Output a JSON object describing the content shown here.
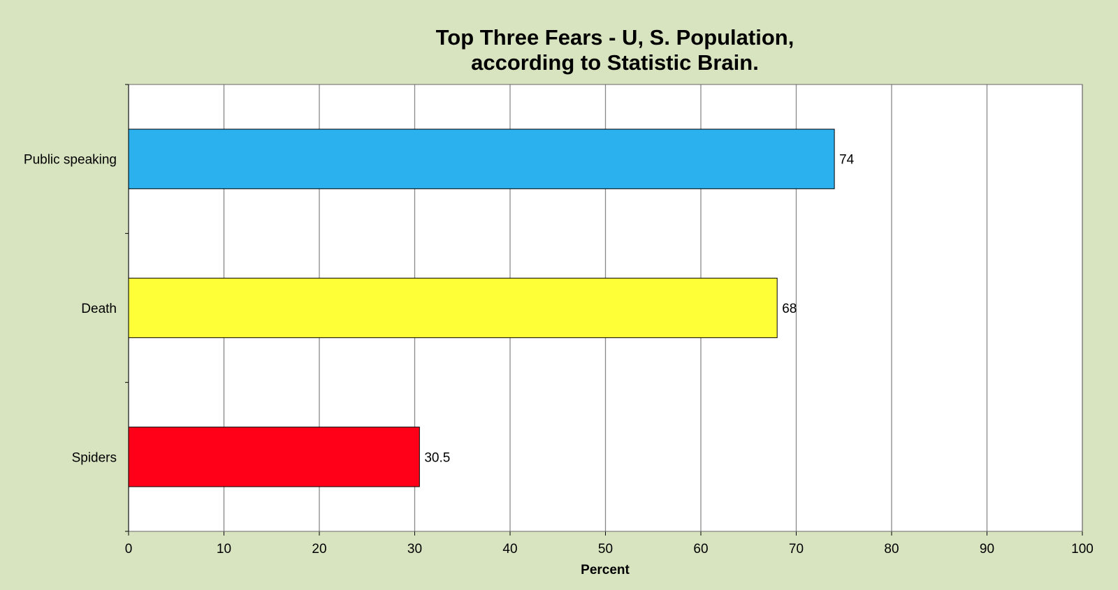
{
  "chart_data": {
    "type": "bar",
    "orientation": "horizontal",
    "title_lines": [
      "Top Three Fears - U, S. Population,",
      "according to Statistic Brain."
    ],
    "categories": [
      "Public speaking",
      "Death",
      "Spiders"
    ],
    "values": [
      74,
      68,
      30.5
    ],
    "value_labels": [
      "74",
      "68",
      "30.5"
    ],
    "bar_colors": [
      "#2bb1ee",
      "#ffff38",
      "#ff0018"
    ],
    "xlabel": "Percent",
    "ylabel": "",
    "xlim": [
      0,
      100
    ],
    "x_ticks": [
      0,
      10,
      20,
      30,
      40,
      50,
      60,
      70,
      80,
      90,
      100
    ],
    "x_tick_labels": [
      "0",
      "10",
      "20",
      "30",
      "40",
      "50",
      "60",
      "70",
      "80",
      "90",
      "100"
    ],
    "grid": "vertical",
    "legend": "none",
    "plot_background": "#ffffff",
    "page_background": "#d8e4c0"
  }
}
